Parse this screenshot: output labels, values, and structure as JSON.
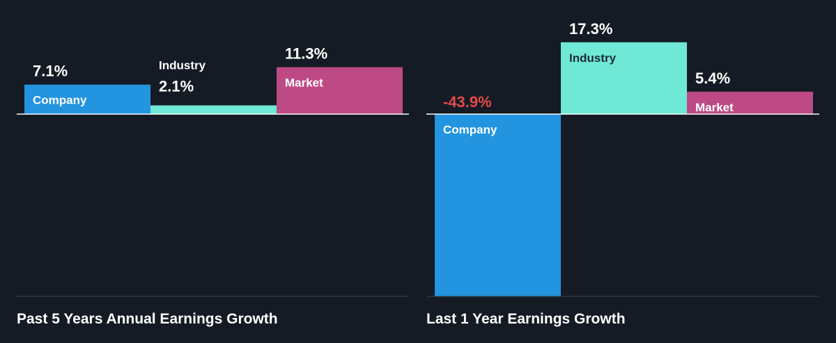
{
  "colors": {
    "background": "#151b24",
    "company": "#2394df",
    "industry": "#6fe8d5",
    "market": "#bd4a85",
    "negative_text": "#e64a4a",
    "text": "#ffffff",
    "dark_text": "#1e2b33",
    "axis": "#ffffff",
    "divider": "#3a404a"
  },
  "chart_data": [
    {
      "type": "bar",
      "title": "Past 5 Years Annual Earnings Growth",
      "categories": [
        "Company",
        "Industry",
        "Market"
      ],
      "values": [
        7.1,
        2.1,
        11.3
      ],
      "value_labels": [
        "7.1%",
        "2.1%",
        "11.3%"
      ],
      "ylim": [
        -43.9,
        17.3
      ],
      "xlabel": "",
      "ylabel": "",
      "grid": false,
      "legend": "none"
    },
    {
      "type": "bar",
      "title": "Last 1 Year Earnings Growth",
      "categories": [
        "Company",
        "Industry",
        "Market"
      ],
      "values": [
        -43.9,
        17.3,
        5.4
      ],
      "value_labels": [
        "-43.9%",
        "17.3%",
        "5.4%"
      ],
      "ylim": [
        -43.9,
        17.3
      ],
      "xlabel": "",
      "ylabel": "",
      "grid": false,
      "legend": "none"
    }
  ]
}
